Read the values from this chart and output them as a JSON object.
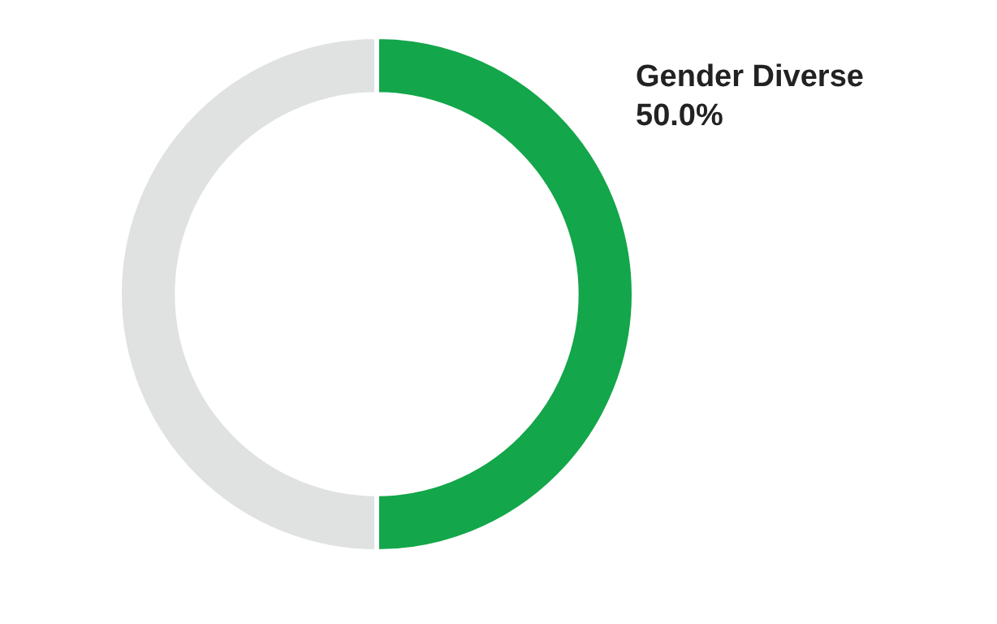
{
  "chart_data": {
    "type": "donut",
    "categories": [
      "Gender Diverse",
      null
    ],
    "values": [
      50,
      50
    ],
    "colors": [
      "#13a64a",
      "#e0e1e1"
    ],
    "value_labels": [
      "50.0%",
      null
    ],
    "legend": false
  }
}
